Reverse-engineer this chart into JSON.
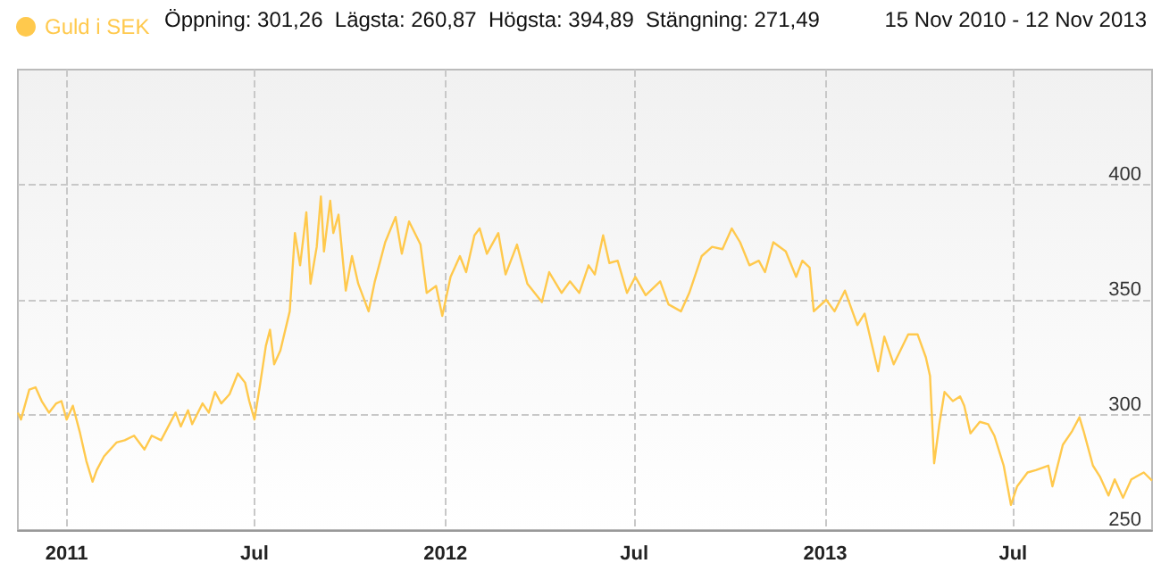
{
  "chart_data": {
    "type": "line",
    "annotations": [
      "Öppning: 301,26  Lägsta: 260,87  Högsta: 394,89  Stängning: 271,49",
      "15 Nov 2010 - 12 Nov 2013"
    ],
    "xlim": [
      "2010-11-15",
      "2013-11-12"
    ],
    "xticks": [
      {
        "value": "2011-01-01",
        "label": "2011"
      },
      {
        "value": "2011-07-01",
        "label": "Jul"
      },
      {
        "value": "2012-01-01",
        "label": "2012"
      },
      {
        "value": "2012-07-01",
        "label": "Jul"
      },
      {
        "value": "2013-01-01",
        "label": "2013"
      },
      {
        "value": "2013-07-01",
        "label": "Jul"
      }
    ],
    "ylim": [
      250,
      450
    ],
    "yticks": [
      250,
      300,
      350,
      400
    ],
    "grid": true,
    "legend": "top left",
    "marker": "none",
    "line_style": "solid",
    "series": [
      {
        "name": "Guld i SEK",
        "color": "#ffc94d",
        "x": [
          "2010-11-15",
          "2010-11-18",
          "2010-11-26",
          "2010-12-02",
          "2010-12-08",
          "2010-12-15",
          "2010-12-22",
          "2010-12-27",
          "2011-01-01",
          "2011-01-07",
          "2011-01-14",
          "2011-01-20",
          "2011-01-26",
          "2011-01-30",
          "2011-02-06",
          "2011-02-18",
          "2011-02-26",
          "2011-03-07",
          "2011-03-17",
          "2011-03-24",
          "2011-04-02",
          "2011-04-16",
          "2011-04-21",
          "2011-04-28",
          "2011-05-02",
          "2011-05-12",
          "2011-05-18",
          "2011-05-24",
          "2011-05-30",
          "2011-06-07",
          "2011-06-15",
          "2011-06-22",
          "2011-06-26",
          "2011-07-01",
          "2011-07-06",
          "2011-07-12",
          "2011-07-16",
          "2011-07-20",
          "2011-07-26",
          "2011-08-04",
          "2011-08-09",
          "2011-08-14",
          "2011-08-20",
          "2011-08-24",
          "2011-08-30",
          "2011-09-03",
          "2011-09-06",
          "2011-09-12",
          "2011-09-15",
          "2011-09-20",
          "2011-09-27",
          "2011-10-03",
          "2011-10-09",
          "2011-10-19",
          "2011-10-25",
          "2011-11-04",
          "2011-11-14",
          "2011-11-20",
          "2011-11-27",
          "2011-12-08",
          "2011-12-14",
          "2011-12-23",
          "2011-12-29",
          "2012-01-06",
          "2012-01-15",
          "2012-01-21",
          "2012-01-29",
          "2012-02-03",
          "2012-02-10",
          "2012-02-21",
          "2012-02-28",
          "2012-03-10",
          "2012-03-20",
          "2012-04-03",
          "2012-04-10",
          "2012-04-22",
          "2012-04-30",
          "2012-05-09",
          "2012-05-18",
          "2012-05-24",
          "2012-06-01",
          "2012-06-07",
          "2012-06-15",
          "2012-06-24",
          "2012-07-02",
          "2012-07-12",
          "2012-07-26",
          "2012-08-03",
          "2012-08-15",
          "2012-08-23",
          "2012-09-04",
          "2012-09-14",
          "2012-09-24",
          "2012-10-03",
          "2012-10-11",
          "2012-10-20",
          "2012-10-29",
          "2012-11-04",
          "2012-11-12",
          "2012-11-24",
          "2012-12-04",
          "2012-12-10",
          "2012-12-17",
          "2012-12-21",
          "2013-01-02",
          "2013-01-10",
          "2013-01-20",
          "2013-02-01",
          "2013-02-08",
          "2013-02-21",
          "2013-02-27",
          "2013-03-08",
          "2013-03-22",
          "2013-03-31",
          "2013-04-08",
          "2013-04-12",
          "2013-04-16",
          "2013-04-21",
          "2013-04-26",
          "2013-05-04",
          "2013-05-11",
          "2013-05-15",
          "2013-05-21",
          "2013-05-30",
          "2013-06-07",
          "2013-06-13",
          "2013-06-22",
          "2013-06-29",
          "2013-07-05",
          "2013-07-15",
          "2013-07-23",
          "2013-08-04",
          "2013-08-08",
          "2013-08-18",
          "2013-08-27",
          "2013-09-03",
          "2013-09-07",
          "2013-09-16",
          "2013-09-23",
          "2013-10-01",
          "2013-10-07",
          "2013-10-15",
          "2013-10-23",
          "2013-11-04",
          "2013-11-12"
        ],
        "values": [
          301,
          298,
          311,
          312,
          306,
          301,
          305,
          306,
          298,
          304,
          292,
          280,
          271,
          276,
          282,
          288,
          289,
          291,
          285,
          291,
          289,
          301,
          295,
          302,
          296,
          305,
          301,
          310,
          305,
          309,
          318,
          314,
          306,
          298,
          312,
          330,
          337,
          322,
          328,
          345,
          379,
          365,
          388,
          357,
          373,
          394.9,
          371,
          393,
          379,
          387,
          354,
          369,
          357,
          345,
          358,
          375,
          386,
          370,
          384,
          374,
          353,
          356,
          343,
          360,
          369,
          362,
          378,
          381,
          370,
          379,
          361,
          374,
          357,
          349,
          362,
          353,
          358,
          353,
          365,
          361,
          378,
          366,
          367,
          353,
          360,
          352,
          358,
          348,
          345,
          353,
          369,
          373,
          372,
          381,
          375,
          365,
          367,
          362,
          375,
          371,
          360,
          367,
          364,
          345,
          350,
          345,
          354,
          339,
          344,
          319,
          334,
          322,
          335,
          335,
          325,
          317,
          279,
          296,
          310,
          306,
          308,
          304,
          292,
          297,
          296,
          291,
          278,
          260.9,
          269,
          275,
          276,
          278,
          269,
          287,
          293,
          299,
          293,
          278,
          273,
          265,
          272,
          264,
          272,
          275,
          271.5
        ]
      }
    ]
  }
}
